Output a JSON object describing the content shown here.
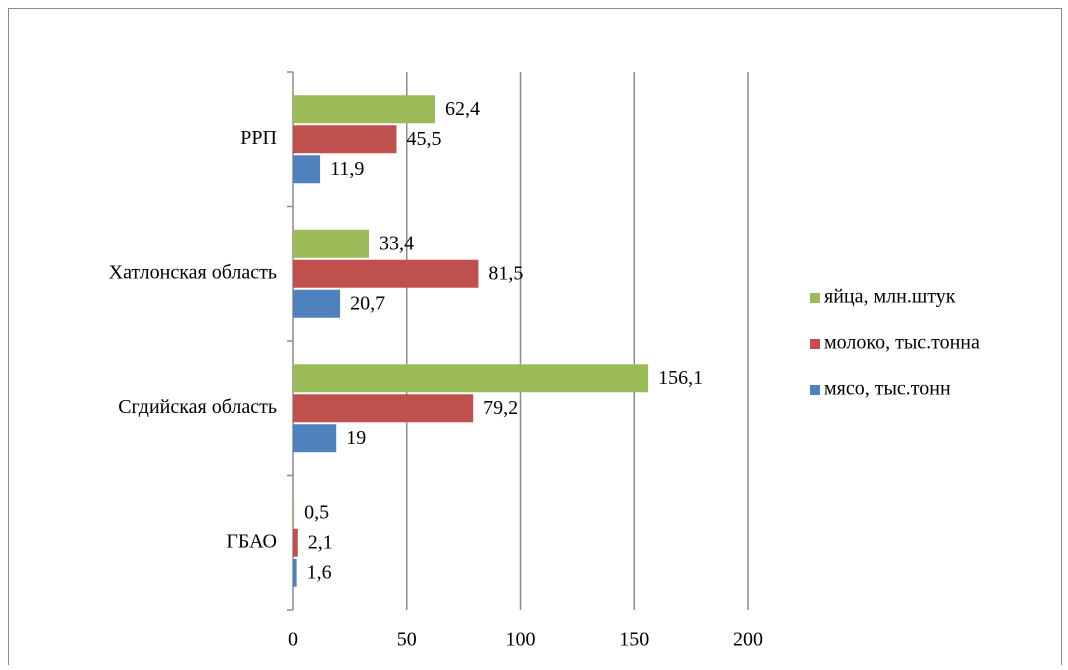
{
  "chart_data": {
    "type": "bar",
    "orientation": "horizontal",
    "categories": [
      "ГБАО",
      "Сгдийская область",
      "Хатлонская область",
      "РРП"
    ],
    "series": [
      {
        "name": "мясо, тыс.тонн",
        "color": "#4f81bd",
        "values": [
          1.6,
          19,
          20.7,
          11.9
        ],
        "value_labels": [
          "1,6",
          "19",
          "20,7",
          "11,9"
        ]
      },
      {
        "name": "молоко, тыс.тонна",
        "color": "#c0504d",
        "values": [
          2.1,
          79.2,
          81.5,
          45.5
        ],
        "value_labels": [
          "2,1",
          "79,2",
          "81,5",
          "45,5"
        ]
      },
      {
        "name": "яйца, млн.штук",
        "color": "#9bbb59",
        "values": [
          0.5,
          156.1,
          33.4,
          62.4
        ],
        "value_labels": [
          "0,5",
          "156,1",
          "33,4",
          "62,4"
        ]
      }
    ],
    "xlim": [
      0,
      200
    ],
    "xticks": [
      0,
      50,
      100,
      150,
      200
    ],
    "grid": true,
    "legend": "right"
  }
}
